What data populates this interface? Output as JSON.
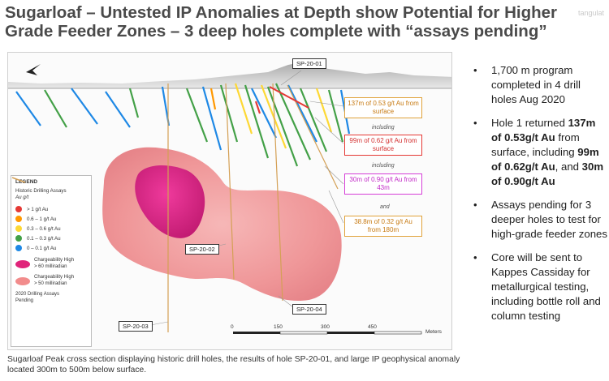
{
  "title": "Sugarloaf – Untested IP Anomalies at Depth show Potential for Higher Grade Feeder Zones – 3 deep holes complete with “assays pending”",
  "brand_mark": "tangulat",
  "figure": {
    "holes": {
      "sp01": "SP-20-01",
      "sp02": "SP-20-02",
      "sp03": "SP-20-03",
      "sp04": "SP-20-04"
    },
    "callouts": {
      "c1": "137m of 0.53 g/t Au from surface",
      "including1": "including",
      "c2": "99m of 0.62 g/t Au from surface",
      "including2": "including",
      "c3": "30m of 0.90 g/t Au from 43m",
      "and": "and",
      "c4": "38.8m of 0.32 g/t Au from 180m"
    },
    "legend": {
      "title": "LEGEND",
      "subtitle": "Historic Drilling Assays",
      "unit": "Au g/t",
      "grades": [
        {
          "label": "> 1 g/t Au",
          "color": "#e53935"
        },
        {
          "label": "0.6 – 1 g/t Au",
          "color": "#ff9800"
        },
        {
          "label": "0.3 – 0.6 g/t Au",
          "color": "#fdd835"
        },
        {
          "label": "0.1 – 0.3 g/t Au",
          "color": "#43a047"
        },
        {
          "label": "0 – 0.1 g/t Au",
          "color": "#1e88e5"
        }
      ],
      "high": {
        "label1": "Chargeability High",
        "label2": "> 60 milliradian",
        "color": "#e0247a"
      },
      "mid": {
        "label1": "Chargeability High",
        "label2": "> 50 milliradian",
        "color": "#f28c8c"
      },
      "pending": {
        "label1": "2020 Drilling Assays",
        "label2": "Pending",
        "color": "#d4a055"
      }
    },
    "scale": {
      "t0": "0",
      "t1": "150",
      "t2": "300",
      "t3": "450",
      "unit": "Meters"
    }
  },
  "caption": "Sugarloaf Peak cross section displaying historic drill holes, the results of hole SP-20-01, and large IP geophysical anomaly located 300m to 500m below surface.",
  "bullets": {
    "b1": "1,700 m program completed in 4 drill holes Aug 2020",
    "b2_a": "Hole 1 returned ",
    "b2_bold1": "137m of 0.53g/t Au",
    "b2_b": " from surface, including ",
    "b2_bold2": "99m of 0.62g/t Au",
    "b2_c": ", and ",
    "b2_bold3": "30m of 0.90g/t Au",
    "b3": "Assays pending for 3 deeper holes to test for high-grade feeder zones",
    "b4": "Core will be sent to Kappes Cassiday for metallurgical testing, including bottle roll and column testing"
  }
}
